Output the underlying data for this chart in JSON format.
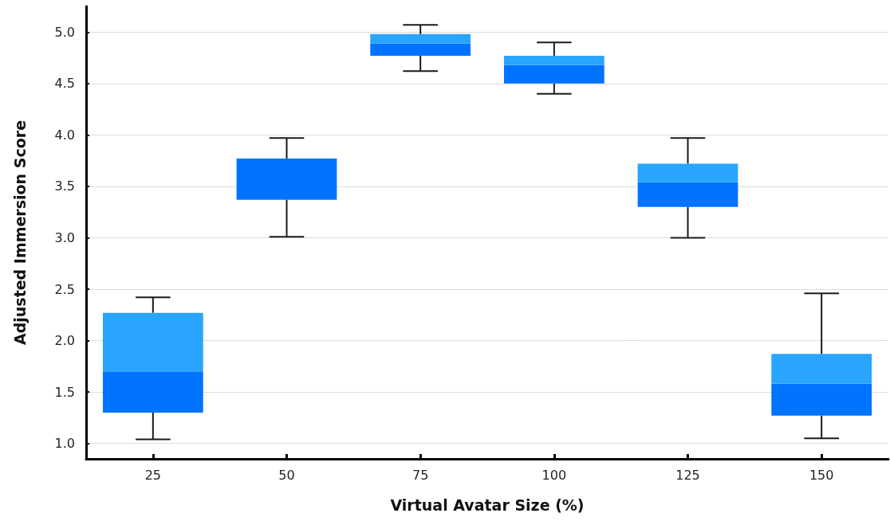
{
  "chart_data": {
    "type": "box",
    "xlabel": "Virtual Avatar Size (%)",
    "ylabel": "Adjusted Immersion Score",
    "categories": [
      "25",
      "50",
      "75",
      "100",
      "125",
      "150"
    ],
    "color": "#0073ff",
    "boxes": [
      {
        "low": 1.04,
        "q1": 1.3,
        "median": 1.7,
        "q3": 2.27,
        "high": 2.42
      },
      {
        "low": 3.01,
        "q1": 3.37,
        "median": 3.77,
        "q3": 3.77,
        "high": 3.97
      },
      {
        "low": 4.62,
        "q1": 4.77,
        "median": 4.89,
        "q3": 4.98,
        "high": 5.07
      },
      {
        "low": 4.4,
        "q1": 4.5,
        "median": 4.68,
        "q3": 4.77,
        "high": 4.9
      },
      {
        "low": 3.0,
        "q1": 3.3,
        "median": 3.54,
        "q3": 3.72,
        "high": 3.97
      },
      {
        "low": 1.05,
        "q1": 1.27,
        "median": 1.58,
        "q3": 1.87,
        "high": 2.46
      }
    ],
    "ylim": [
      0.85,
      5.25
    ],
    "yticks": [
      {
        "value": 1,
        "label": "1.0"
      },
      1.5,
      {
        "value": 2,
        "label": "2.0"
      },
      2.5,
      {
        "value": 3,
        "label": "3.0"
      },
      3.5,
      {
        "value": 4,
        "label": "4.0"
      },
      4.5,
      {
        "value": 5,
        "label": "5.0"
      }
    ],
    "grid": "y"
  }
}
